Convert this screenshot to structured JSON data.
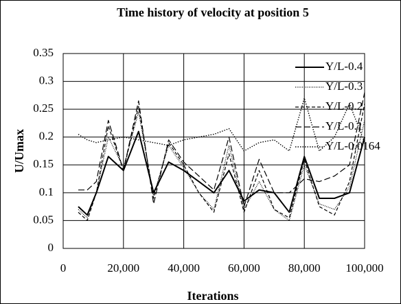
{
  "chart_data": {
    "type": "line",
    "title": "Time history of velocity at position 5",
    "xlabel": "Iterations",
    "ylabel": "U/Umax",
    "x": [
      5000,
      8000,
      11000,
      15000,
      20000,
      25000,
      30000,
      35000,
      40000,
      45000,
      50000,
      55000,
      60000,
      65000,
      70000,
      75000,
      80000,
      85000,
      90000,
      95000,
      100000
    ],
    "series": [
      {
        "name": "Y/L-0.4",
        "color": "#000000",
        "dash": "",
        "width": 2,
        "values": [
          0.075,
          0.06,
          0.1,
          0.165,
          0.14,
          0.21,
          0.1,
          0.155,
          0.14,
          0.12,
          0.1,
          0.14,
          0.085,
          0.105,
          0.1,
          0.065,
          0.165,
          0.09,
          0.09,
          0.1,
          0.2
        ]
      },
      {
        "name": "Y/L-0.3",
        "color": "#000000",
        "dash": "1,1.5",
        "width": 1.2,
        "values": [
          0.07,
          0.055,
          0.1,
          0.2,
          0.145,
          0.245,
          0.095,
          0.185,
          0.145,
          0.1,
          0.07,
          0.185,
          0.07,
          0.12,
          0.07,
          0.05,
          0.15,
          0.08,
          0.07,
          0.11,
          0.23
        ]
      },
      {
        "name": "Y/L-0.2",
        "color": "#000000",
        "dash": "5,3",
        "width": 1.2,
        "values": [
          0.065,
          0.05,
          0.1,
          0.22,
          0.14,
          0.255,
          0.09,
          0.19,
          0.15,
          0.1,
          0.065,
          0.17,
          0.065,
          0.14,
          0.07,
          0.055,
          0.16,
          0.075,
          0.06,
          0.12,
          0.26
        ]
      },
      {
        "name": "Y/L-0.1",
        "color": "#000000",
        "dash": "9,4",
        "width": 1.2,
        "values": [
          0.105,
          0.105,
          0.12,
          0.23,
          0.14,
          0.265,
          0.08,
          0.195,
          0.155,
          0.13,
          0.105,
          0.2,
          0.075,
          0.16,
          0.1,
          0.1,
          0.125,
          0.12,
          0.13,
          0.15,
          0.28
        ]
      },
      {
        "name": "Y/L-0.0164",
        "color": "#000000",
        "dash": "1.5,2",
        "width": 1.4,
        "values": [
          0.205,
          0.195,
          0.19,
          0.195,
          0.2,
          0.195,
          0.19,
          0.185,
          0.195,
          0.2,
          0.205,
          0.215,
          0.175,
          0.19,
          0.195,
          0.175,
          0.27,
          0.175,
          0.2,
          0.26,
          0.19
        ]
      }
    ],
    "xlim": [
      0,
      100000
    ],
    "xticks": [
      0,
      {
        "value": 20000,
        "label": "20,000"
      },
      {
        "value": 40000,
        "label": "40,000"
      },
      {
        "value": 60000,
        "label": "60,000"
      },
      {
        "value": 80000,
        "label": "80,000"
      },
      {
        "value": 100000,
        "label": "100,000"
      }
    ],
    "ylim": [
      0,
      0.35
    ],
    "yticks": [
      0,
      0.05,
      0.1,
      0.15,
      0.2,
      0.25,
      0.3,
      0.35
    ],
    "grid": true,
    "legend": "upper right"
  }
}
